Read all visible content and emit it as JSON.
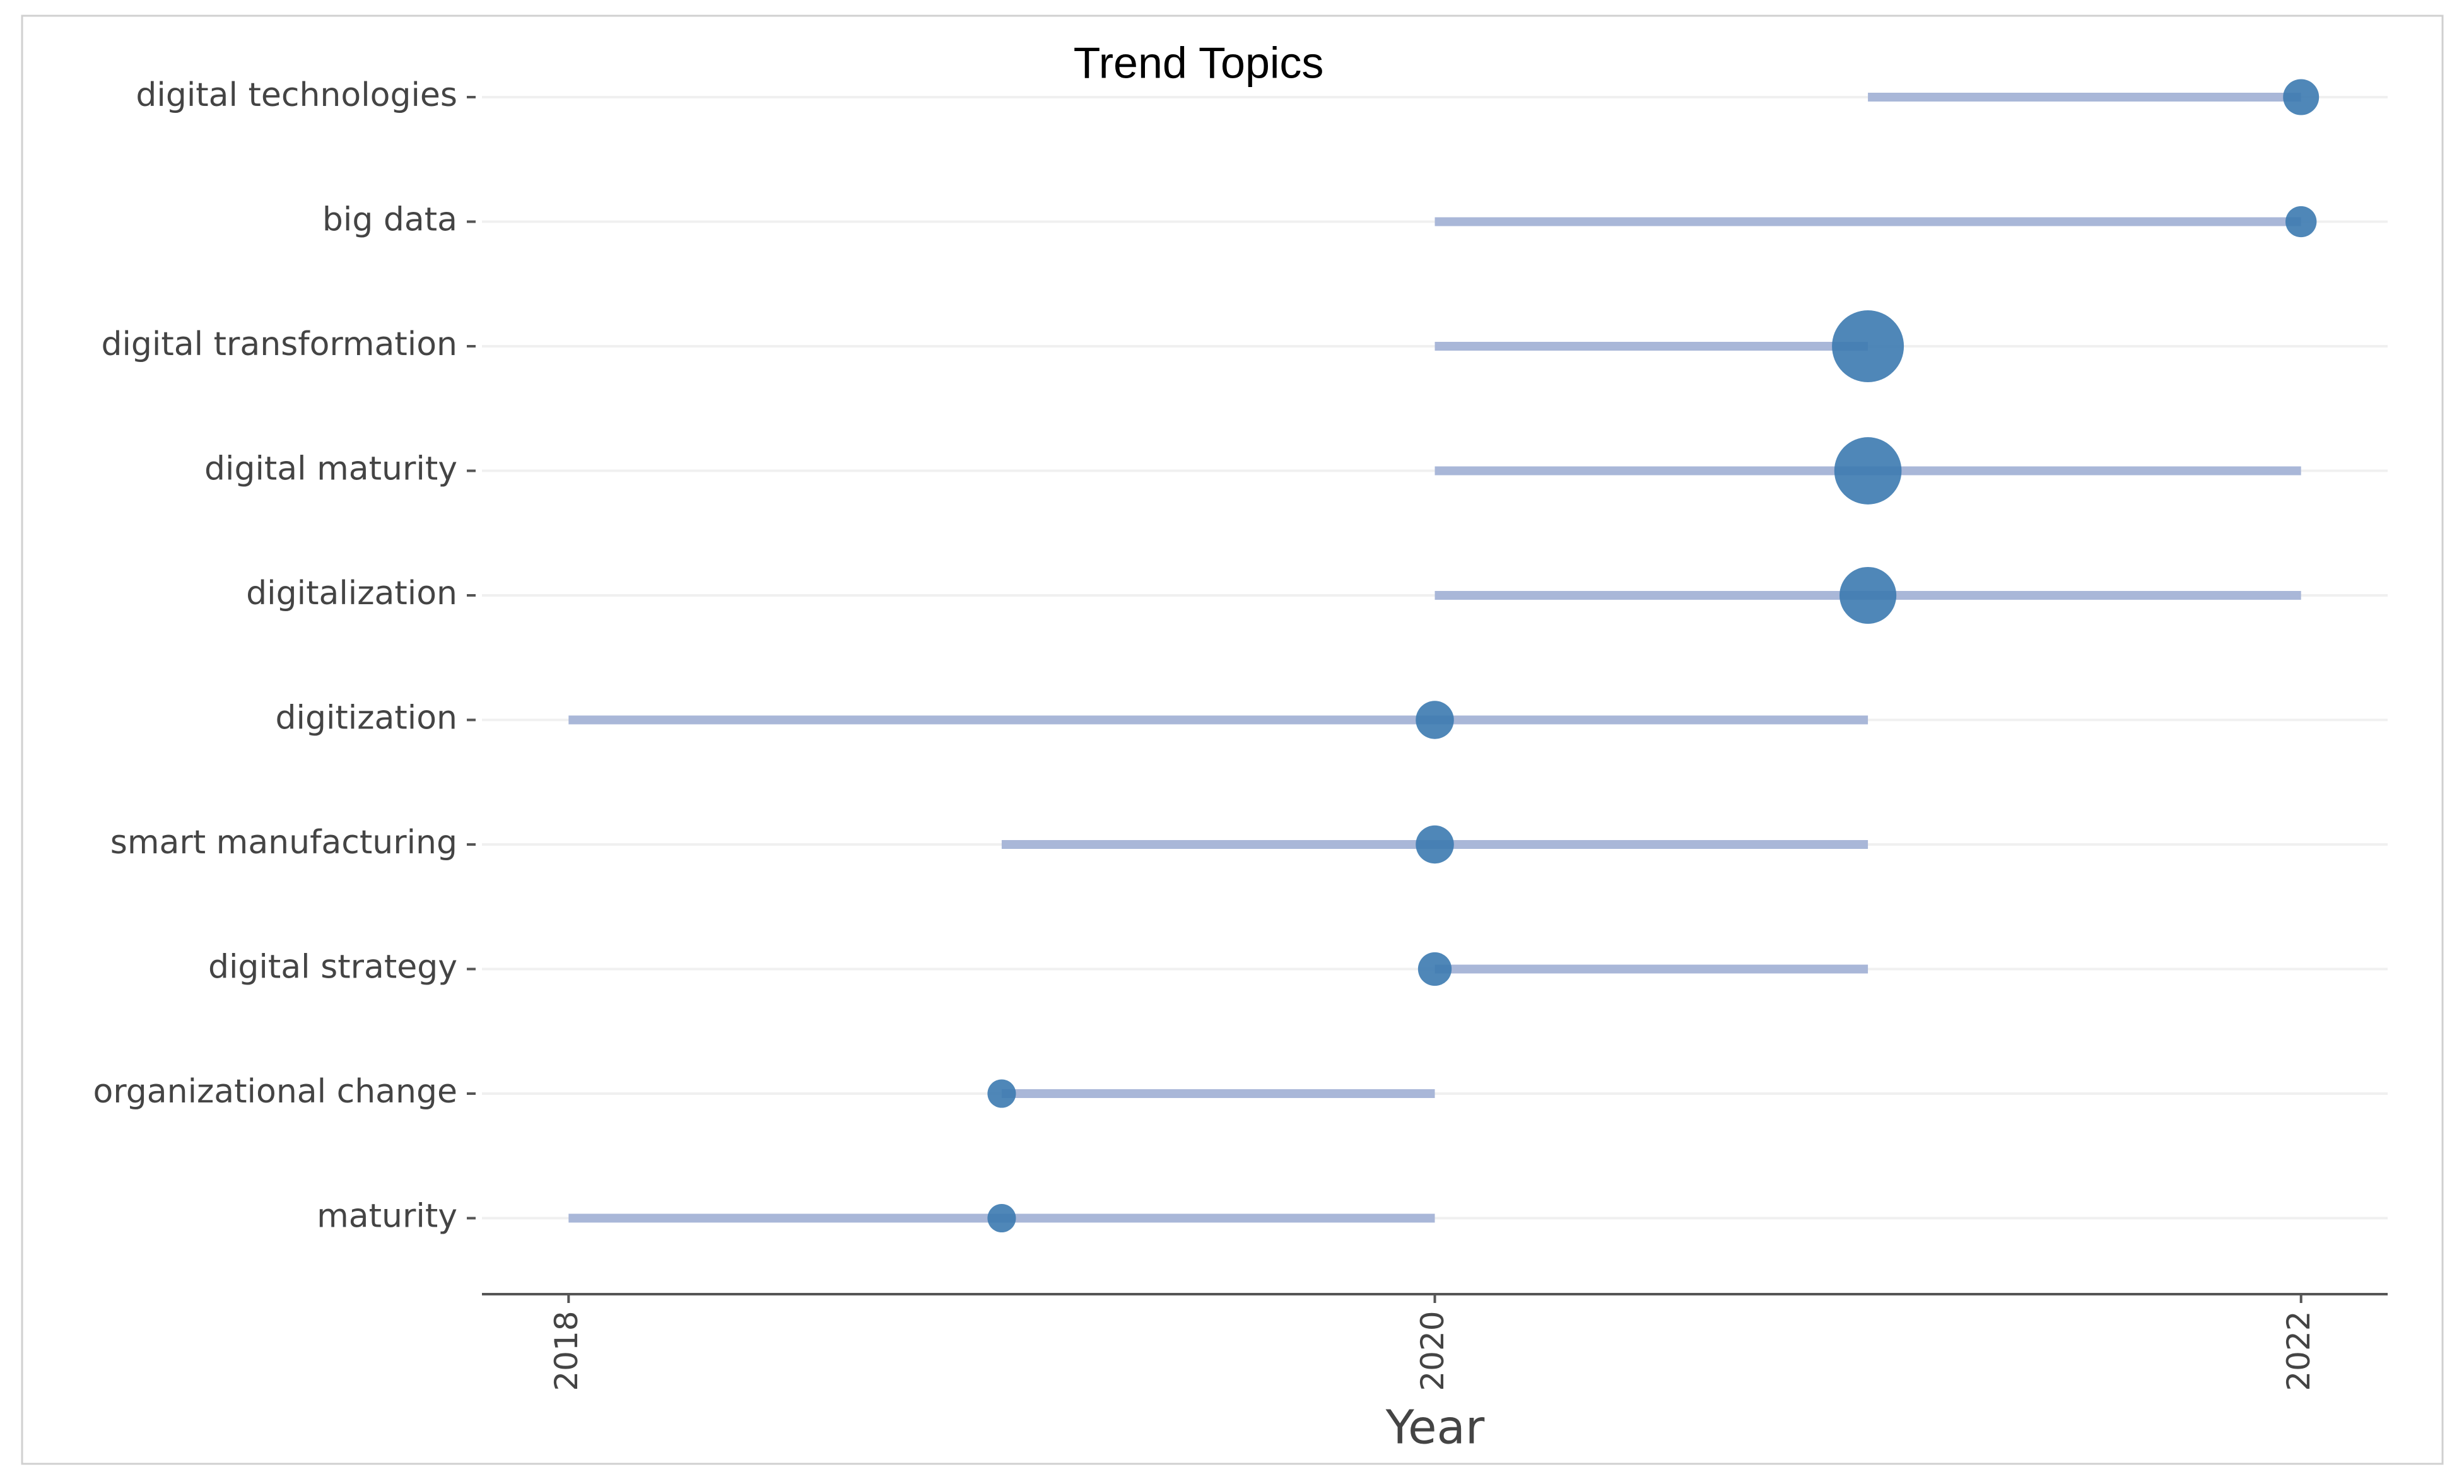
{
  "chart_data": {
    "type": "trend",
    "title": "Trend Topics",
    "xlabel": "Year",
    "categories": [
      "digital technologies",
      "big data",
      "digital transformation",
      "digital maturity",
      "digitalization",
      "digitization",
      "smart manufacturing",
      "digital strategy",
      "organizational change",
      "maturity"
    ],
    "q1": [
      2021,
      2020,
      2020,
      2020,
      2020,
      2018,
      2019,
      2020,
      2019,
      2018
    ],
    "median": [
      2022,
      2022,
      2021,
      2021,
      2021,
      2020,
      2020,
      2020,
      2019,
      2019
    ],
    "q3": [
      2022,
      2022,
      2021,
      2022,
      2022,
      2021,
      2021,
      2021,
      2020,
      2020
    ],
    "frequency": [
      8,
      6,
      32,
      28,
      20,
      9,
      9,
      7,
      5,
      5
    ],
    "line_color": "#a9b7d8",
    "dot_color": "#3c7ab0",
    "xlim": [
      2017.8,
      2022.2
    ],
    "xticks": [
      2018,
      2020,
      2022
    ],
    "grid": true
  }
}
